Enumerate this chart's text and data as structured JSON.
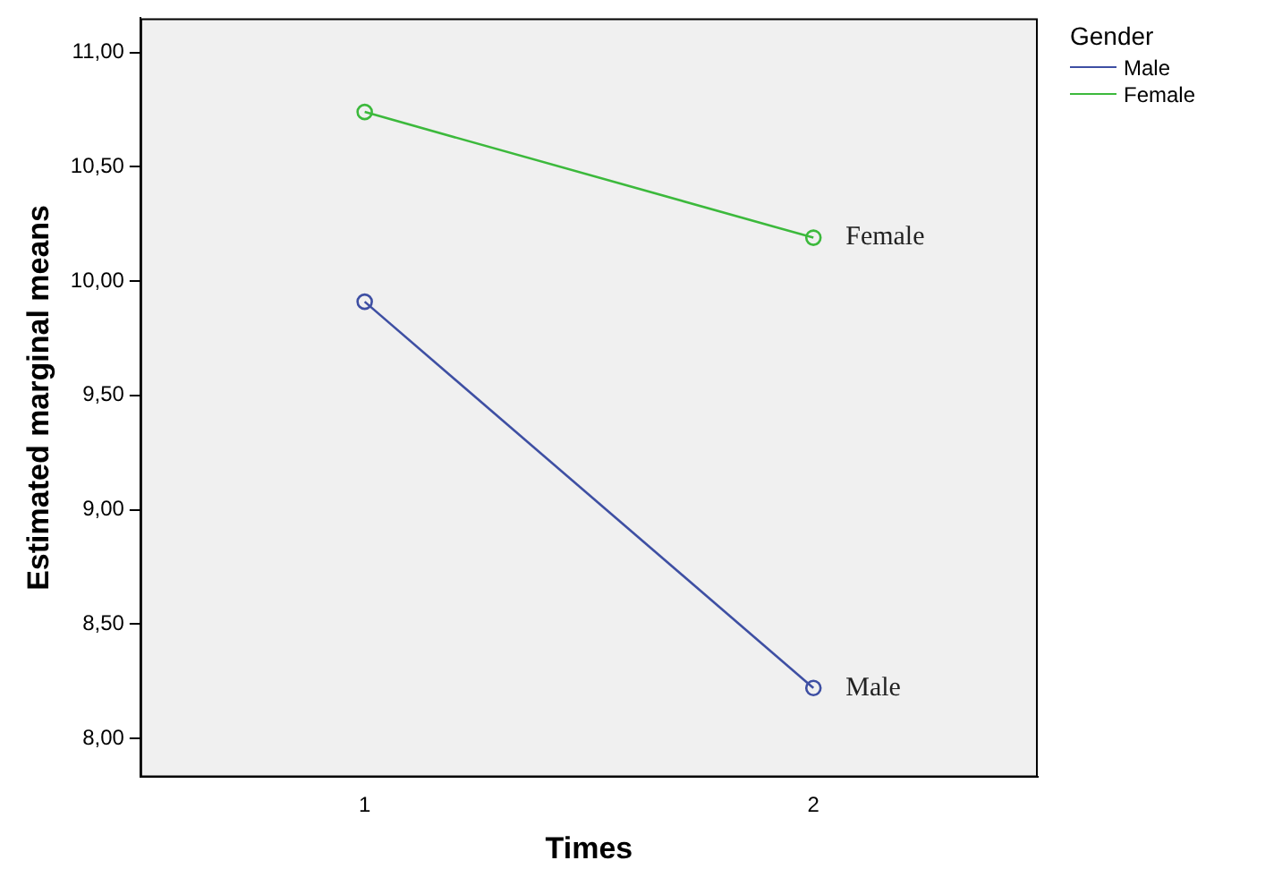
{
  "chart_data": {
    "type": "line",
    "xlabel": "Times",
    "ylabel": "Estimated marginal means",
    "legend_title": "Gender",
    "categories": [
      "1",
      "2"
    ],
    "series": [
      {
        "name": "Male",
        "color": "#3e4fa3",
        "values": [
          9.91,
          8.22
        ]
      },
      {
        "name": "Female",
        "color": "#3cb93c",
        "values": [
          10.74,
          10.19
        ]
      }
    ],
    "ylim": [
      7.83,
      11.15
    ],
    "yticks": [
      {
        "value": 8,
        "label": "8,00"
      },
      {
        "value": 8.5,
        "label": "8,50"
      },
      {
        "value": 9,
        "label": "9,00"
      },
      {
        "value": 9.5,
        "label": "9,50"
      },
      {
        "value": 10,
        "label": "10,00"
      },
      {
        "value": 10.5,
        "label": "10,50"
      },
      {
        "value": 11,
        "label": "11,00"
      }
    ],
    "grid": false,
    "legend": "top right",
    "marker": "circle",
    "line_style": "solid"
  }
}
